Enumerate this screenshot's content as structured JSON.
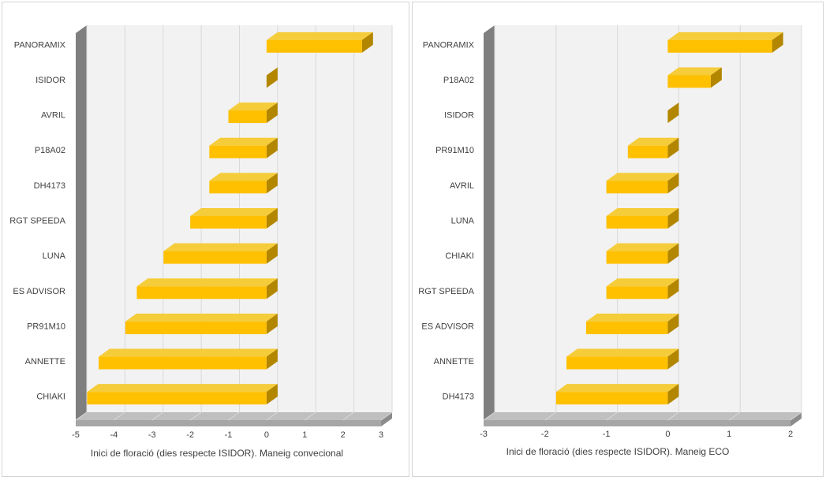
{
  "chart_data": [
    {
      "type": "bar",
      "orientation": "horizontal",
      "style": "3d",
      "xlabel": "Inici de floració (dies respecte ISIDOR). Maneig convecional",
      "xlim": [
        -5,
        3
      ],
      "xticks": [
        -5,
        -4,
        -3,
        -2,
        -1,
        0,
        1,
        2,
        3
      ],
      "grid": true,
      "categories": [
        "PANORAMIX",
        "ISIDOR",
        "AVRIL",
        "P18A02",
        "DH4173",
        "RGT SPEEDA",
        "LUNA",
        "ES ADVISOR",
        "PR91M10",
        "ANNETTE",
        "CHIAKI"
      ],
      "values": [
        2.5,
        0,
        -1.0,
        -1.5,
        -1.5,
        -2.0,
        -2.7,
        -3.4,
        -3.7,
        -4.4,
        -4.7
      ],
      "color": "#FFC000"
    },
    {
      "type": "bar",
      "orientation": "horizontal",
      "style": "3d",
      "xlabel": "Inici de floració (dies respecte ISIDOR). Maneig ECO",
      "xlim": [
        -3,
        2
      ],
      "xticks": [
        -3,
        -2,
        -1,
        0,
        1,
        2
      ],
      "grid": true,
      "categories": [
        "PANORAMIX",
        "P18A02",
        "ISIDOR",
        "PR91M10",
        "AVRIL",
        "LUNA",
        "CHIAKI",
        "RGT SPEEDA",
        "ES ADVISOR",
        "ANNETTE",
        "DH4173"
      ],
      "values": [
        1.7,
        0.7,
        0,
        -0.65,
        -1.0,
        -1.0,
        -1.0,
        -1.0,
        -1.33,
        -1.65,
        -1.82
      ],
      "color": "#FFC000"
    }
  ]
}
